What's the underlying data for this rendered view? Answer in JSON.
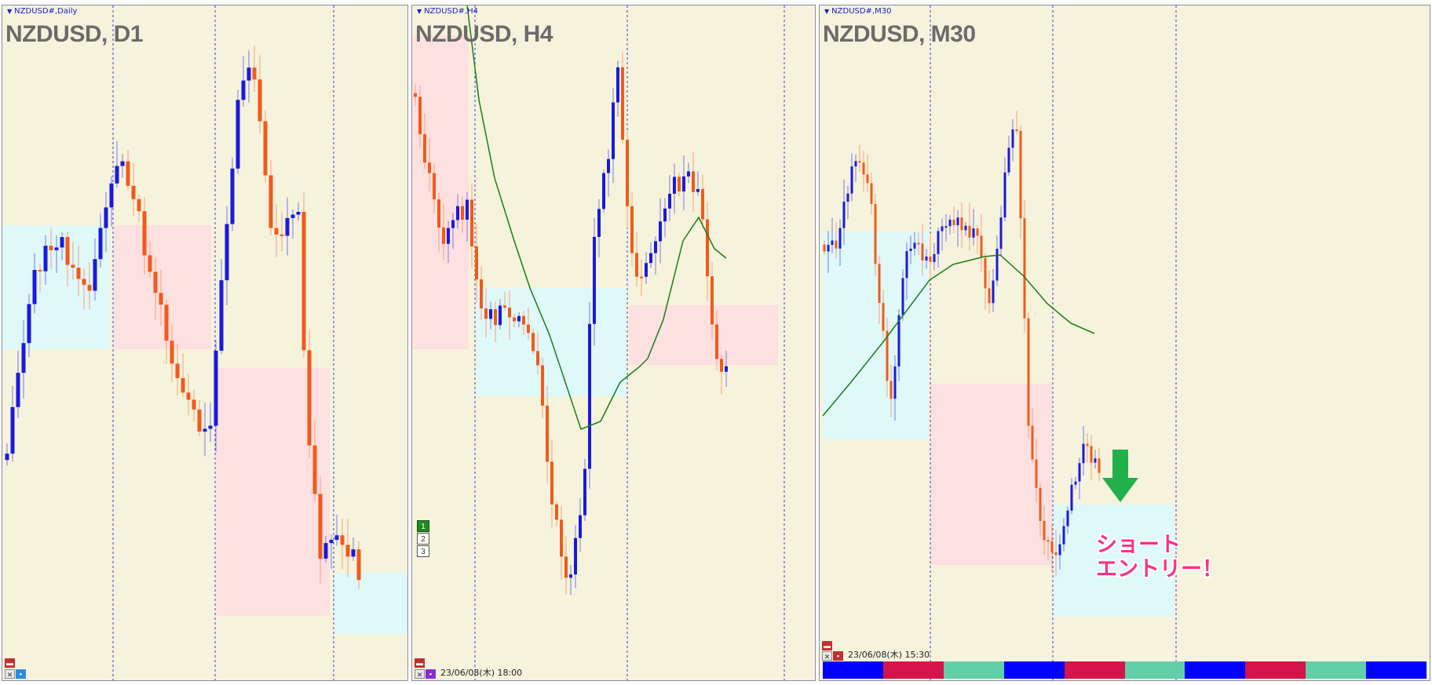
{
  "panels": [
    {
      "tab_label": "NZDUSD#,Daily",
      "title": "NZDUSD, D1"
    },
    {
      "tab_label": "NZDUSD#,H4",
      "title": "NZDUSD, H4",
      "window_buttons": [
        "1",
        "2",
        "3"
      ],
      "datetime": "23/06/08(木) 18:00"
    },
    {
      "tab_label": "NZDUSD#,M30",
      "title": "NZDUSD, M30",
      "datetime": "23/06/08(木) 15:30",
      "annotation_line1": "ショート",
      "annotation_line2": "エントリー！"
    }
  ],
  "colors": {
    "background": "#f5f3dc",
    "bull": "#1a1adc",
    "bear": "#f25a1a",
    "zone_blue": "#dff8f8",
    "zone_pink": "#fde0e0",
    "ma_line": "#1a7d1a",
    "arrow": "#22b04a",
    "annotation": "#ff2f86"
  },
  "icons": [
    "close-icon",
    "minimize-icon",
    "down-arrow-icon"
  ],
  "strip_colors": [
    "#0000ff",
    "#d4144a",
    "#60d0a8",
    "#0000ff",
    "#d4144a",
    "#60d0a8",
    "#0000ff",
    "#d4144a",
    "#60d0a8",
    "#0000ff"
  ]
}
